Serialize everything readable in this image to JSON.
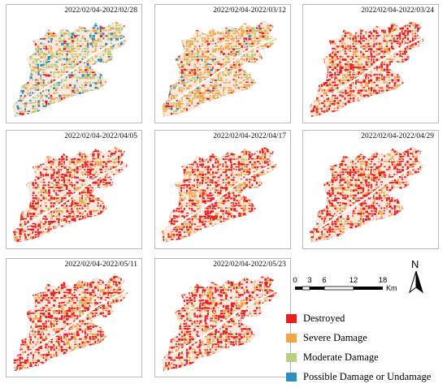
{
  "panels": [
    {
      "title": "2022/02/04-2022/02/28",
      "dominant": "Moderate Damage"
    },
    {
      "title": "2022/02/04-2022/03/12",
      "dominant": "Severe Damage"
    },
    {
      "title": "2022/02/04-2022/03/24",
      "dominant": "Destroyed"
    },
    {
      "title": "2022/02/04-2022/04/05",
      "dominant": "Destroyed"
    },
    {
      "title": "2022/02/04-2022/04/17",
      "dominant": "Destroyed"
    },
    {
      "title": "2022/02/04-2022/04/29",
      "dominant": "Destroyed"
    },
    {
      "title": "2022/02/04-2022/05/11",
      "dominant": "Destroyed"
    },
    {
      "title": "2022/02/04-2022/05/23",
      "dominant": "Destroyed"
    }
  ],
  "scalebar": {
    "ticks": [
      "0",
      "3",
      "6",
      "12",
      "18"
    ],
    "unit": "Km"
  },
  "north_arrow": {
    "label": "N",
    "icon": "north-arrow-icon"
  },
  "legend": {
    "items": [
      {
        "label": "Destroyed",
        "color": "#e8201e"
      },
      {
        "label": "Severe Damage",
        "color": "#f2a644"
      },
      {
        "label": "Moderate Damage",
        "color": "#b9cf83"
      },
      {
        "label": "Possible Damage or Undamage",
        "color": "#2b8fbf"
      }
    ]
  }
}
